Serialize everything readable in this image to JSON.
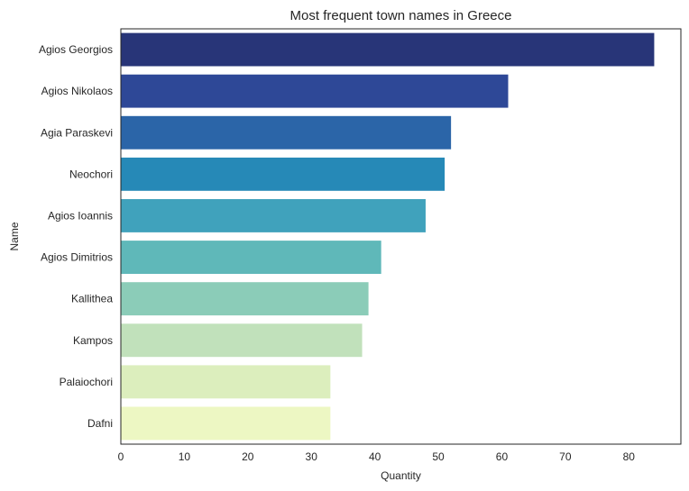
{
  "chart_data": {
    "type": "bar",
    "orientation": "horizontal",
    "title": "Most frequent town names in Greece",
    "xlabel": "Quantity",
    "ylabel": "Name",
    "xlim": [
      0,
      88.2
    ],
    "xticks": [
      0,
      10,
      20,
      30,
      40,
      50,
      60,
      70,
      80
    ],
    "grid": false,
    "categories": [
      "Agios Georgios",
      "Agios Nikolaos",
      "Agia Paraskevi",
      "Neochori",
      "Agios Ioannis",
      "Agios Dimitrios",
      "Kallithea",
      "Kampos",
      "Palaiochori",
      "Dafni"
    ],
    "values": [
      84,
      61,
      52,
      51,
      48,
      41,
      39,
      38,
      33,
      33
    ],
    "colors": [
      "#283578",
      "#2e4897",
      "#2b65a8",
      "#2689b7",
      "#40a2bc",
      "#5fb8b9",
      "#8bccb8",
      "#c1e1bb",
      "#dceebd",
      "#edf7c3"
    ]
  }
}
